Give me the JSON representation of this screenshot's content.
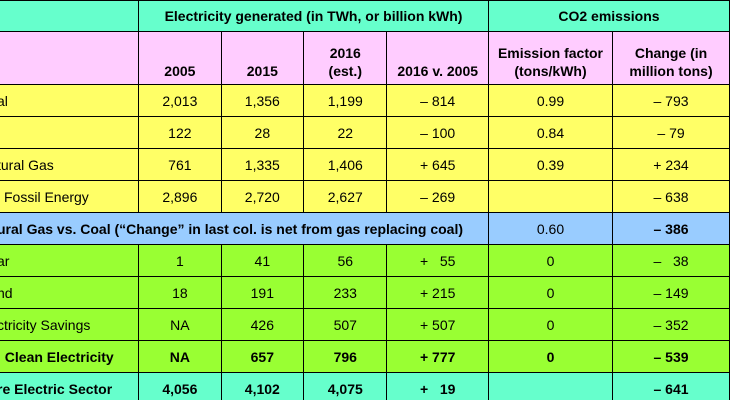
{
  "header": {
    "electricity_title": "Electricity generated (in TWh, or billion kWh)",
    "co2_title": "CO2 emissions",
    "col_2005": "2005",
    "col_2015": "2015",
    "col_2016_line1": "2016",
    "col_2016_line2": "(est.)",
    "col_vs": "2016 v. 2005",
    "col_factor_line1": "Emission factor",
    "col_factor_line2": "(tons/kWh)",
    "col_change_line1": "Change (in",
    "col_change_line2": "million tons)"
  },
  "rows": [
    {
      "name": "al",
      "y2005": "2,013",
      "y2015": "1,356",
      "y2016": "1,199",
      "vs": "– 814",
      "factor": "0.99",
      "change": "– 793"
    },
    {
      "name": "",
      "y2005": "122",
      "y2015": "28",
      "y2016": "22",
      "vs": "– 100",
      "factor": "0.84",
      "change": "– 79"
    },
    {
      "name": "tural Gas",
      "y2005": "761",
      "y2015": "1,335",
      "y2016": "1,406",
      "vs": "+ 645",
      "factor": "0.39",
      "change": "+ 234"
    },
    {
      "name": "l Fossil Energy",
      "y2005": "2,896",
      "y2015": "2,720",
      "y2016": "2,627",
      "vs": "– 269",
      "factor": "",
      "change": "– 638"
    }
  ],
  "gas_row": {
    "label": "ural Gas vs. Coal (“Change” in last col. is net from gas replacing coal)",
    "factor": "0.60",
    "change": "– 386"
  },
  "clean_rows": [
    {
      "name": "ar",
      "y2005": "1",
      "y2015": "41",
      "y2016": "56",
      "vs": "+   55",
      "factor": "0",
      "change": "–   38"
    },
    {
      "name": "nd",
      "y2005": "18",
      "y2015": "191",
      "y2016": "233",
      "vs": "+ 215",
      "factor": "0",
      "change": "– 149"
    },
    {
      "name": "ctricity Savings",
      "y2005": "NA",
      "y2015": "426",
      "y2016": "507",
      "vs": "+ 507",
      "factor": "0",
      "change": "– 352"
    }
  ],
  "clean_total": {
    "name": "l Clean Electricity",
    "y2005": "NA",
    "y2015": "657",
    "y2016": "796",
    "vs": "+ 777",
    "factor": "0",
    "change": "– 539"
  },
  "sector_total": {
    "name": "re Electric Sector",
    "y2005": "4,056",
    "y2015": "4,102",
    "y2016": "4,075",
    "vs": "+   19",
    "factor": "",
    "change": "– 641"
  },
  "colors": {
    "teal": "#66ffcc",
    "pink": "#ffccff",
    "yellow": "#ffff66",
    "blue": "#99ccff",
    "green": "#99ff33"
  }
}
